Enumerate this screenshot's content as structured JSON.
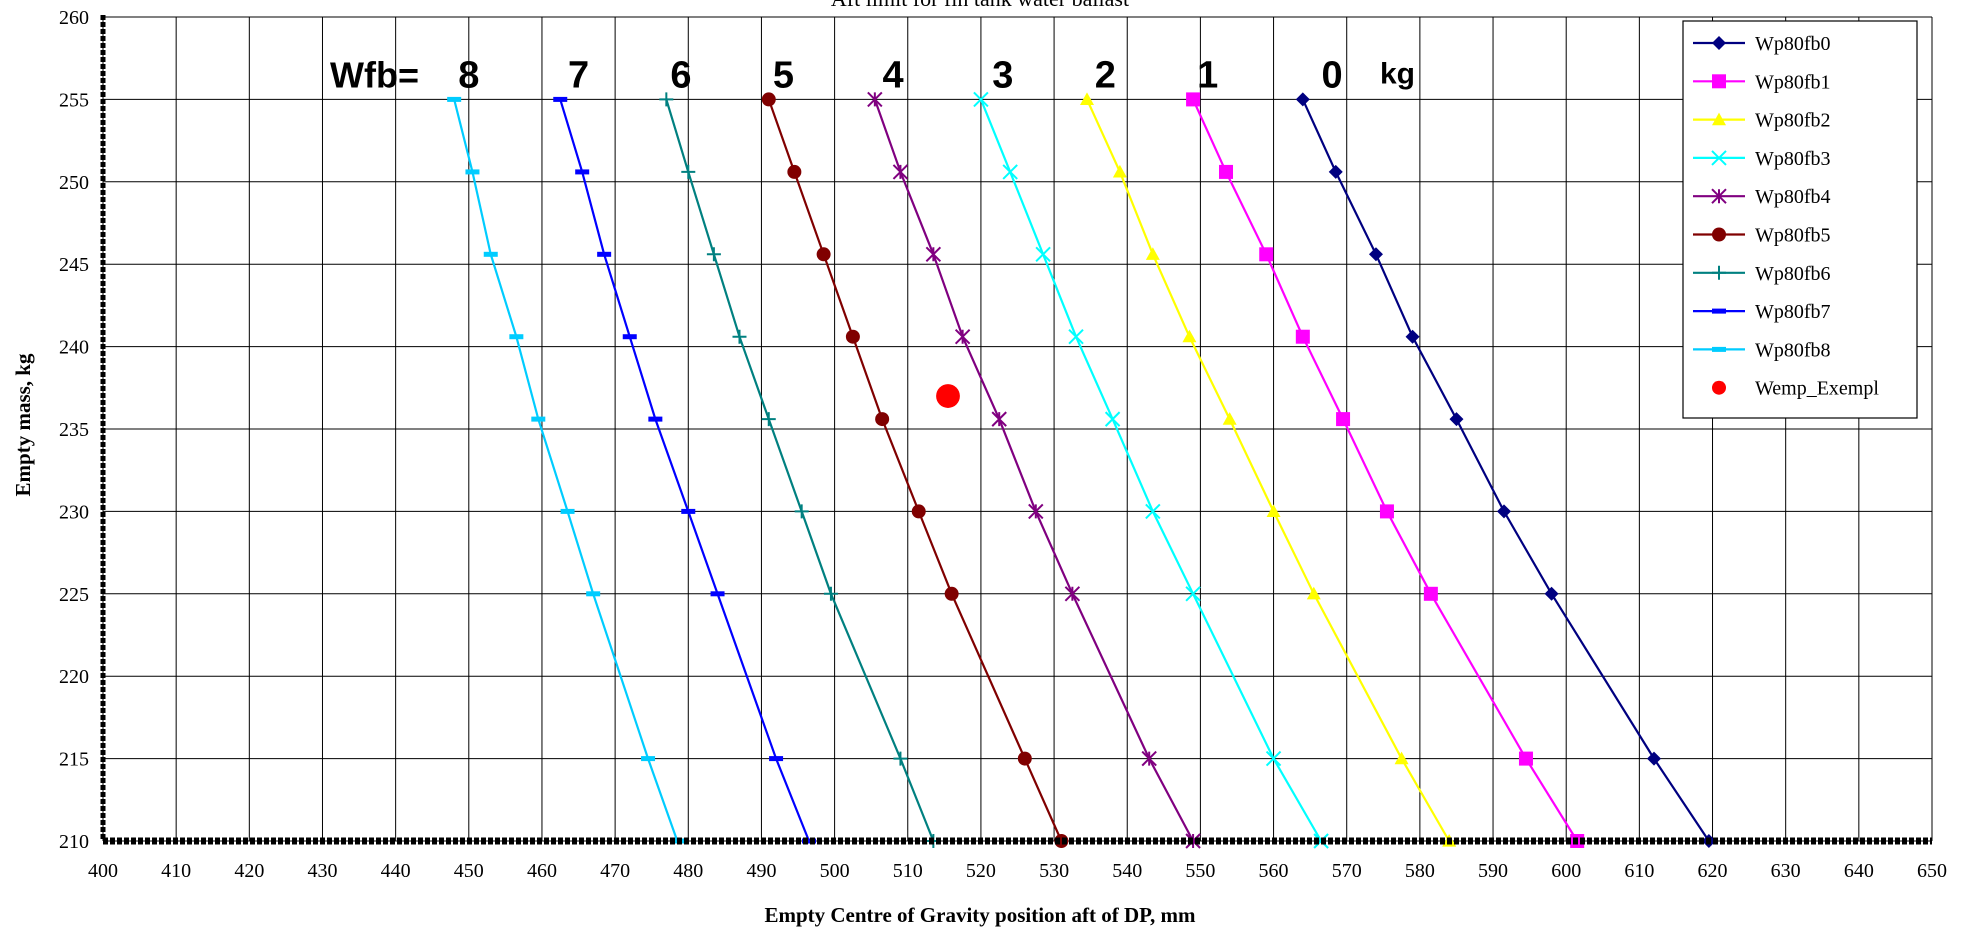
{
  "chart_data": {
    "type": "line",
    "title": "Aft limit for fin tank water ballast",
    "xlabel": "Empty Centre of Gravity position aft of DP, mm",
    "ylabel": "Empty mass, kg",
    "xlim": [
      400,
      650
    ],
    "ylim": [
      210,
      260
    ],
    "x_ticks": [
      "400",
      "410",
      "420",
      "430",
      "440",
      "450",
      "460",
      "470",
      "480",
      "490",
      "500",
      "510",
      "520",
      "530",
      "540",
      "550",
      "560",
      "570",
      "580",
      "590",
      "600",
      "610",
      "620",
      "630",
      "640",
      "650"
    ],
    "y_ticks": [
      "210",
      "215",
      "220",
      "225",
      "230",
      "235",
      "240",
      "245",
      "250",
      "255",
      "260"
    ],
    "grid": true,
    "legend_position": "top-right",
    "curve_labels": {
      "prefix": "Wfb=",
      "unit": "kg",
      "values": [
        "8",
        "7",
        "6",
        "5",
        "4",
        "3",
        "2",
        "1",
        "0"
      ],
      "x": [
        450,
        465,
        479,
        493,
        508,
        523,
        537,
        551,
        568
      ]
    },
    "series": [
      {
        "name": "Wp80fb0",
        "color": "#000080",
        "marker": "diamond",
        "x": [
          564,
          568.5,
          574,
          579,
          585,
          591.5,
          598,
          612,
          619.5
        ],
        "y": [
          255,
          250.6,
          245.6,
          240.6,
          235.6,
          230,
          225,
          215,
          210
        ]
      },
      {
        "name": "Wp80fb1",
        "color": "#FF00FF",
        "marker": "square",
        "x": [
          549,
          553.5,
          559,
          564,
          569.5,
          575.5,
          581.5,
          594.5,
          601.5
        ],
        "y": [
          255,
          250.6,
          245.6,
          240.6,
          235.6,
          230,
          225,
          215,
          210
        ]
      },
      {
        "name": "Wp80fb2",
        "color": "#FFFF00",
        "marker": "triangle",
        "x": [
          534.5,
          539,
          543.5,
          548.5,
          554,
          560,
          565.5,
          577.5,
          584
        ],
        "y": [
          255,
          250.6,
          245.6,
          240.6,
          235.6,
          230,
          225,
          215,
          210
        ]
      },
      {
        "name": "Wp80fb3",
        "color": "#00FFFF",
        "marker": "x",
        "x": [
          520,
          524,
          528.5,
          533,
          538,
          543.5,
          549,
          560,
          566.5
        ],
        "y": [
          255,
          250.6,
          245.6,
          240.6,
          235.6,
          230,
          225,
          215,
          210
        ]
      },
      {
        "name": "Wp80fb4",
        "color": "#800080",
        "marker": "star",
        "x": [
          505.5,
          509,
          513.5,
          517.5,
          522.5,
          527.5,
          532.5,
          543,
          549
        ],
        "y": [
          255,
          250.6,
          245.6,
          240.6,
          235.6,
          230,
          225,
          215,
          210
        ]
      },
      {
        "name": "Wp80fb5",
        "color": "#800000",
        "marker": "circle",
        "x": [
          491,
          494.5,
          498.5,
          502.5,
          506.5,
          511.5,
          516,
          526,
          531
        ],
        "y": [
          255,
          250.6,
          245.6,
          240.6,
          235.6,
          230,
          225,
          215,
          210
        ]
      },
      {
        "name": "Wp80fb6",
        "color": "#008080",
        "marker": "plus",
        "x": [
          477,
          480,
          483.5,
          487,
          491,
          495.5,
          499.5,
          509,
          513.5
        ],
        "y": [
          255,
          250.6,
          245.6,
          240.6,
          235.6,
          230,
          225,
          215,
          210
        ]
      },
      {
        "name": "Wp80fb7",
        "color": "#0000FF",
        "marker": "dash",
        "x": [
          462.5,
          465.5,
          468.5,
          472,
          475.5,
          480,
          484,
          492,
          496.5
        ],
        "y": [
          255,
          250.6,
          245.6,
          240.6,
          235.6,
          230,
          225,
          215,
          210
        ]
      },
      {
        "name": "Wp80fb8",
        "color": "#00CCFF",
        "marker": "dash",
        "x": [
          448,
          450.5,
          453,
          456.5,
          459.5,
          463.5,
          467,
          474.5,
          478.5
        ],
        "y": [
          255,
          250.6,
          245.6,
          240.6,
          235.6,
          230,
          225,
          215,
          210
        ]
      },
      {
        "name": "Wemp_Exempl",
        "color": "#FF0000",
        "marker": "bigcircle",
        "line": false,
        "x": [
          515.5
        ],
        "y": [
          237
        ]
      }
    ]
  }
}
